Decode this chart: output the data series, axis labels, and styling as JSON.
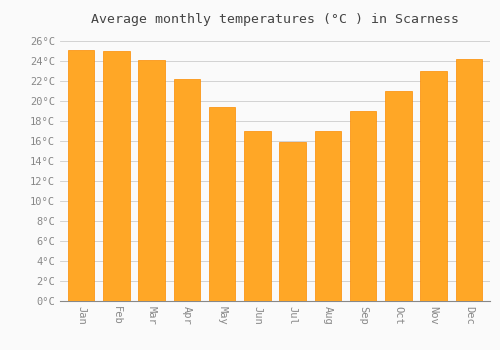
{
  "title": "Average monthly temperatures (°C ) in Scarness",
  "months": [
    "Jan",
    "Feb",
    "Mar",
    "Apr",
    "May",
    "Jun",
    "Jul",
    "Aug",
    "Sep",
    "Oct",
    "Nov",
    "Dec"
  ],
  "values": [
    25.1,
    25.0,
    24.1,
    22.2,
    19.4,
    17.0,
    15.9,
    17.0,
    19.0,
    21.0,
    23.0,
    24.2
  ],
  "bar_color": "#FFA726",
  "bar_edge_color": "#FB8C00",
  "background_color": "#FAFAFA",
  "grid_color": "#CCCCCC",
  "title_color": "#444444",
  "tick_color": "#888888",
  "axis_color": "#888888",
  "ylim": [
    0,
    27
  ],
  "ytick_values": [
    0,
    2,
    4,
    6,
    8,
    10,
    12,
    14,
    16,
    18,
    20,
    22,
    24,
    26
  ],
  "title_fontsize": 9.5,
  "tick_fontsize": 7.5,
  "bar_width": 0.75,
  "xtick_rotation": 270
}
